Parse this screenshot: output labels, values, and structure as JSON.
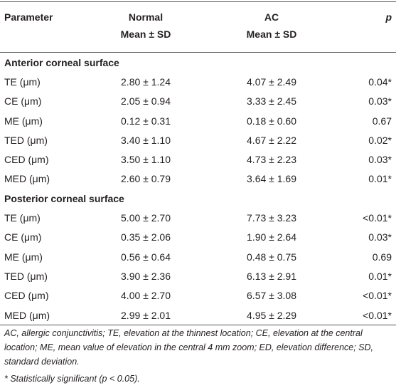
{
  "table": {
    "header": [
      "Parameter",
      "Normal",
      "AC",
      "p"
    ],
    "subheader": [
      "Mean ± SD",
      "Mean ± SD"
    ],
    "sections": [
      {
        "title": "Anterior corneal surface",
        "rows": [
          [
            "TE (μm)",
            "2.80 ± 1.24",
            "4.07 ± 2.49",
            "0.04*"
          ],
          [
            "CE (μm)",
            "2.05 ± 0.94",
            "3.33 ± 2.45",
            "0.03*"
          ],
          [
            "ME (μm)",
            "0.12 ± 0.31",
            "0.18 ± 0.60",
            "0.67"
          ],
          [
            "TED (μm)",
            "3.40 ± 1.10",
            "4.67 ± 2.22",
            "0.02*"
          ],
          [
            "CED (μm)",
            "3.50 ± 1.10",
            "4.73 ± 2.23",
            "0.03*"
          ],
          [
            "MED (μm)",
            "2.60 ± 0.79",
            "3.64 ± 1.69",
            "0.01*"
          ]
        ]
      },
      {
        "title": "Posterior corneal surface",
        "rows": [
          [
            "TE (μm)",
            "5.00 ± 2.70",
            "7.73 ± 3.23",
            "<0.01*"
          ],
          [
            "CE (μm)",
            "0.35 ± 2.06",
            "1.90 ± 2.64",
            "0.03*"
          ],
          [
            "ME (μm)",
            "0.56 ± 0.64",
            "0.48 ± 0.75",
            "0.69"
          ],
          [
            "TED (μm)",
            "3.90 ± 2.36",
            "6.13 ± 2.91",
            "0.01*"
          ],
          [
            "CED (μm)",
            "4.00 ± 2.70",
            "6.57 ± 3.08",
            "<0.01*"
          ],
          [
            "MED (μm)",
            "2.99 ± 2.01",
            "4.95 ± 2.29",
            "<0.01*"
          ]
        ]
      }
    ],
    "footnotes": [
      "AC, allergic conjunctivitis; TE, elevation at the thinnest location; CE, elevation at the central location; ME, mean value of elevation in the central 4 mm zoom; ED, elevation difference; SD, standard deviation.",
      "* Statistically significant (p < 0.05)."
    ]
  }
}
